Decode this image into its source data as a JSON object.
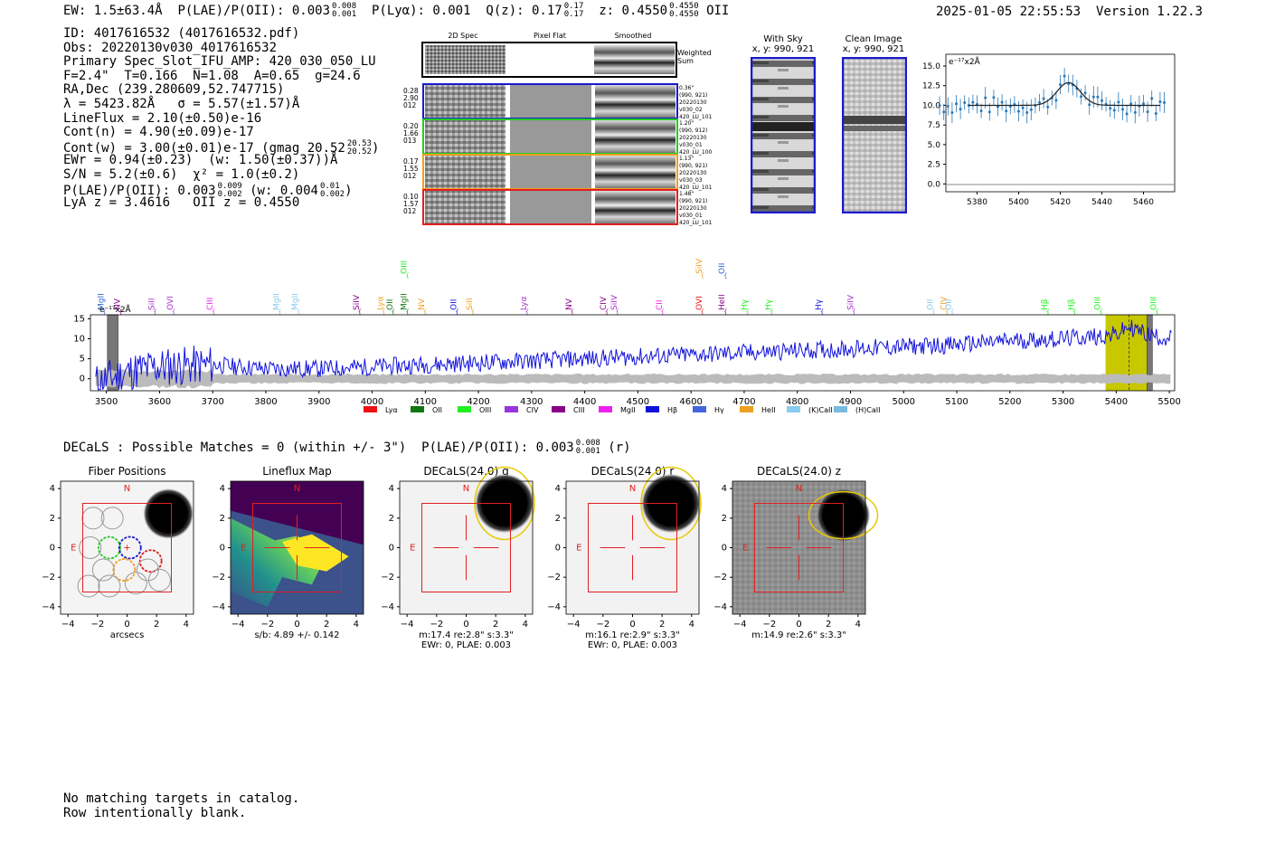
{
  "header": {
    "ew": "EW: 1.5±63.4Å",
    "plae_label": "P(LAE)/P(OII): 0.003",
    "plae_hi": "0.008",
    "plae_lo": "0.001",
    "plya": "P(Lyα): 0.001",
    "qz_label": "Q(z): 0.17",
    "qz_hi": "0.17",
    "qz_lo": "0.17",
    "z_label": "z: 0.4550",
    "z_hi": "0.4550",
    "z_lo": "0.4550",
    "z_line": "OII",
    "timestamp": "2025-01-05 22:55:53",
    "version": "Version 1.22.3"
  },
  "info": {
    "id": "ID: 4017616532 (4017616532.pdf)",
    "obs": "Obs: 20220130v030_4017616532",
    "primary": "Primary Spec_Slot_IFU_AMP: 420_030_050_LU",
    "fit": "F=2.4\"  T=0.166  N=1.08  A=0.65  g=24.6",
    "radec": "RA,Dec (239.280609,52.747715)",
    "lambda": "λ = 5423.82Å   σ = 5.57(±1.57)Å",
    "lineflux": "LineFlux = 2.10(±0.50)e-16",
    "contn": "Cont(n) = 4.90(±0.09)e-17",
    "contw": "Cont(w) = 3.00(±0.01)e-17 (gmag 20.52",
    "gmag_hi": "20.53",
    "gmag_lo": "20.52",
    "ewr": "EWr = 0.94(±0.23)  (w: 1.50(±0.37))Å",
    "sn": "S/N = 5.2(±0.6)  χ² = 1.0(±0.2)",
    "plae": "P(LAE)/P(OII): 0.003",
    "plae_hi": "0.009",
    "plae_lo": "0.002",
    "plae_w": "(w: 0.004",
    "plae_w_hi": "0.01",
    "plae_w_lo": "0.002",
    "lya": "LyA z = 3.4616   OII z = 0.4550"
  },
  "cutouts": {
    "col_labels": [
      "2D Spec",
      "Pixel Flat",
      "Smoothed"
    ],
    "weighted_sum": [
      "Weighted",
      "Sum"
    ],
    "rows": [
      {
        "left": [
          "0.28",
          "2.90",
          "012"
        ],
        "right": [
          "0.36\"",
          "(990, 921)",
          "20220130",
          "v030_02",
          "420_LU_101"
        ],
        "color": "#1a1acc"
      },
      {
        "left": [
          "0.20",
          "1.66",
          "013"
        ],
        "right": [
          "1.20\"",
          "(990, 912)",
          "20220130",
          "v030_01",
          "420_LU_100"
        ],
        "color": "#22cc22"
      },
      {
        "left": [
          "0.17",
          "1.55",
          "012"
        ],
        "right": [
          "1.13\"",
          "(990, 921)",
          "20220130",
          "v030_03",
          "420_LU_101"
        ],
        "color": "#f0a020"
      },
      {
        "left": [
          "0.10",
          "1.57",
          "012"
        ],
        "right": [
          "1.48\"",
          "(990, 921)",
          "20220130",
          "v030_01",
          "420_LU_101"
        ],
        "color": "#e02020"
      }
    ],
    "with_sky_title": "With Sky",
    "with_sky_sub": "x, y: 990, 921",
    "clean_title": "Clean Image",
    "clean_sub": "x, y: 990, 921"
  },
  "zoom_chart": {
    "unit_label": "e⁻¹⁷x2Å",
    "x_ticks": [
      "5380",
      "5400",
      "5420",
      "5440",
      "5460"
    ],
    "y_ticks": [
      "0.0",
      "2.5",
      "5.0",
      "7.5",
      "10.0",
      "12.5",
      "15.0"
    ]
  },
  "chart_data": {
    "type": "line",
    "title": "",
    "unit_label": "e⁻¹⁷x2Å",
    "xlim": [
      3470,
      5510
    ],
    "ylim": [
      -3,
      16
    ],
    "x_ticks": [
      3500,
      3600,
      3700,
      3800,
      3900,
      4000,
      4100,
      4200,
      4300,
      4400,
      4500,
      4600,
      4700,
      4800,
      4900,
      5000,
      5100,
      5200,
      5300,
      5400,
      5500
    ],
    "y_ticks": [
      0,
      5,
      10,
      15
    ],
    "highlight_band": [
      5380,
      5465
    ],
    "highlight_center": 5424,
    "masked_bands": [
      [
        3502,
        3522
      ],
      [
        5458,
        5468
      ]
    ],
    "flux_anchor_points": {
      "x": [
        3480,
        3550,
        3600,
        3700,
        3800,
        3900,
        4000,
        4100,
        4200,
        4300,
        4400,
        4500,
        4600,
        4700,
        4800,
        4900,
        5000,
        5100,
        5200,
        5300,
        5400,
        5424,
        5460,
        5500
      ],
      "y": [
        -1,
        2,
        3,
        3.5,
        2.5,
        2.5,
        3,
        3.5,
        4,
        4.5,
        5,
        5.5,
        6,
        6.5,
        7,
        7.5,
        8,
        8.5,
        9.5,
        10,
        11,
        13,
        11,
        10
      ]
    },
    "legend": [
      {
        "name": "Lyα",
        "color": "#ee1111"
      },
      {
        "name": "OII",
        "color": "#117711"
      },
      {
        "name": "OIII",
        "color": "#22ee22"
      },
      {
        "name": "CIV",
        "color": "#9933dd"
      },
      {
        "name": "CIII",
        "color": "#880088"
      },
      {
        "name": "MgII",
        "color": "#ee22ee"
      },
      {
        "name": "Hβ",
        "color": "#1111dd"
      },
      {
        "name": "Hγ",
        "color": "#4466dd"
      },
      {
        "name": "HeII",
        "color": "#f0a020"
      },
      {
        "name": "(K)CaII",
        "color": "#88ccee"
      },
      {
        "name": "(H)CaII",
        "color": "#77bbdd"
      }
    ],
    "line_markers": [
      {
        "label": "MgII",
        "x": 3495,
        "color": "#3366cc"
      },
      {
        "label": "NV",
        "x": 3525,
        "color": "#880088"
      },
      {
        "label": "SiII",
        "x": 3590,
        "color": "#aa33cc"
      },
      {
        "label": "OVI",
        "x": 3625,
        "color": "#aa33cc"
      },
      {
        "label": "CIII",
        "x": 3700,
        "color": "#ee22ee"
      },
      {
        "label": "MgII",
        "x": 3825,
        "color": "#88ccee"
      },
      {
        "label": "MgII",
        "x": 3860,
        "color": "#88ccee"
      },
      {
        "label": "SiIV",
        "x": 3975,
        "color": "#880088"
      },
      {
        "label": "Lyα",
        "x": 4020,
        "color": "#f0a020"
      },
      {
        "label": "OII",
        "x": 4038,
        "color": "#117711"
      },
      {
        "label": "MgII",
        "x": 4065,
        "color": "#117711"
      },
      {
        "label": "OIII",
        "x": 4065,
        "color": "#22ee22"
      },
      {
        "label": "NV",
        "x": 4098,
        "color": "#f0a020"
      },
      {
        "label": "OII",
        "x": 4158,
        "color": "#1111dd"
      },
      {
        "label": "SiII",
        "x": 4188,
        "color": "#f0a020"
      },
      {
        "label": "Lyα",
        "x": 4290,
        "color": "#aa33cc"
      },
      {
        "label": "NV",
        "x": 4375,
        "color": "#880088"
      },
      {
        "label": "CIV",
        "x": 4440,
        "color": "#880088"
      },
      {
        "label": "SiIV",
        "x": 4460,
        "color": "#aa33cc"
      },
      {
        "label": "CII",
        "x": 4545,
        "color": "#ee22ee"
      },
      {
        "label": "OVI",
        "x": 4620,
        "color": "#ee1111"
      },
      {
        "label": "SiIV",
        "x": 4620,
        "color": "#f0a020"
      },
      {
        "label": "HeII",
        "x": 4663,
        "color": "#880088"
      },
      {
        "label": "OII",
        "x": 4663,
        "color": "#3366cc"
      },
      {
        "label": "Hγ",
        "x": 4705,
        "color": "#22ee22"
      },
      {
        "label": "Hγ",
        "x": 4750,
        "color": "#22ee22"
      },
      {
        "label": "Hγ",
        "x": 4845,
        "color": "#1111dd"
      },
      {
        "label": "SiIV",
        "x": 4905,
        "color": "#aa33cc"
      },
      {
        "label": "OII",
        "x": 5055,
        "color": "#88ccee"
      },
      {
        "label": "CIV",
        "x": 5080,
        "color": "#f0a020"
      },
      {
        "label": "OII",
        "x": 5090,
        "color": "#88ccee"
      },
      {
        "label": "Hβ",
        "x": 5270,
        "color": "#22ee22"
      },
      {
        "label": "Hβ",
        "x": 5320,
        "color": "#22ee22"
      },
      {
        "label": "OIII",
        "x": 5370,
        "color": "#22ee22"
      },
      {
        "label": "OIII",
        "x": 5475,
        "color": "#22ee22"
      }
    ]
  },
  "decals": {
    "summary": "DECaLS : Possible Matches = 0 (within +/- 3\")  P(LAE)/P(OII): 0.003",
    "summary_hi": "0.008",
    "summary_lo": "0.001",
    "summary_band": "(r)",
    "panels": [
      {
        "title": "Fiber Positions",
        "caption1": "arcsecs",
        "caption2": ""
      },
      {
        "title": "Lineflux Map",
        "caption1": "s/b: 4.89 +/- 0.142",
        "caption2": ""
      },
      {
        "title": "DECaLS(24.0) g",
        "caption1": "m:17.4  re:2.8\"  s:3.3\"",
        "caption2": "EWr: 0, PLAE: 0.003"
      },
      {
        "title": "DECaLS(24.0) r",
        "caption1": "m:16.1  re:2.9\"  s:3.3\"",
        "caption2": "EWr: 0, PLAE: 0.003"
      },
      {
        "title": "DECaLS(24.0) z",
        "caption1": "m:14.9  re:2.6\"  s:3.3\"",
        "caption2": ""
      }
    ],
    "axis_ticks": [
      "−4",
      "−2",
      "0",
      "2",
      "4"
    ],
    "compass_n": "N",
    "compass_e": "E"
  },
  "footer": {
    "line1": "No matching targets in catalog.",
    "line2": "Row intentionally blank."
  }
}
